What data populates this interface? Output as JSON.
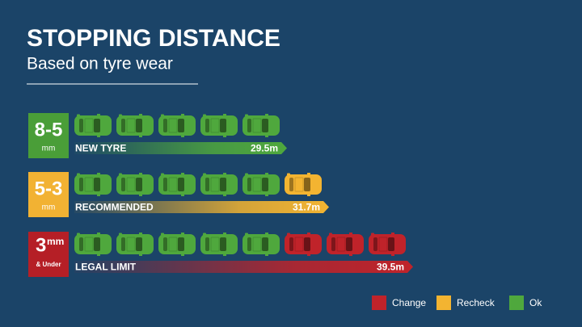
{
  "chart_data": {
    "type": "pictograph",
    "title": "STOPPING DISTANCE",
    "subtitle": "Based on tyre wear",
    "categories": [
      "NEW TYRE",
      "RECOMMENDED",
      "LEGAL LIMIT"
    ],
    "badges": [
      {
        "label": "8-5",
        "unit": "mm",
        "color": "#4a9e38"
      },
      {
        "label": "5-3",
        "unit": "mm",
        "color": "#f2b233"
      },
      {
        "label": "3",
        "unit": "mm",
        "note": "& Under",
        "color": "#b51f26"
      }
    ],
    "series": [
      {
        "name": "Ok",
        "color": "#4fa83d",
        "values": [
          5,
          5,
          5
        ]
      },
      {
        "name": "Recheck",
        "color": "#f3b431",
        "values": [
          0,
          1,
          0
        ]
      },
      {
        "name": "Change",
        "color": "#c0232a",
        "values": [
          0,
          0,
          3
        ]
      }
    ],
    "legend_order": [
      2,
      1,
      0
    ],
    "distances": {
      "values": [
        29.5,
        31.7,
        39.5
      ],
      "value_labels": [
        "29.5m",
        "31.7m",
        "39.5m"
      ]
    }
  }
}
